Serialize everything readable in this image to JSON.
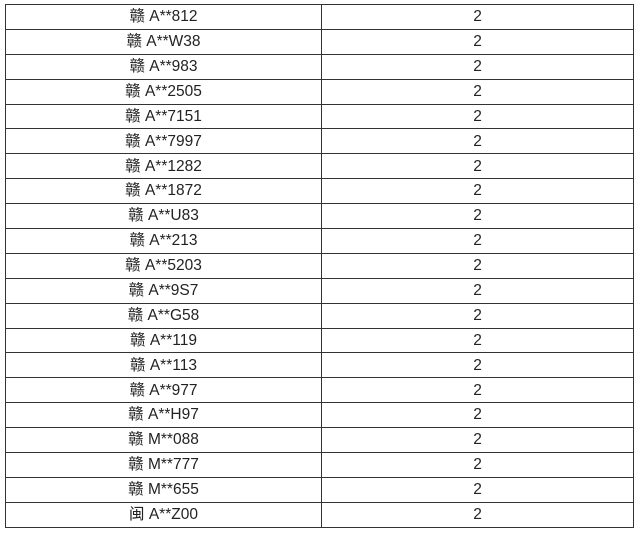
{
  "table": {
    "rows": [
      {
        "plate": "赣 A**812",
        "count": "2"
      },
      {
        "plate": "赣 A**W38",
        "count": "2"
      },
      {
        "plate": "赣 A**983",
        "count": "2"
      },
      {
        "plate": "赣 A**2505",
        "count": "2"
      },
      {
        "plate": "赣 A**7151",
        "count": "2"
      },
      {
        "plate": "赣 A**7997",
        "count": "2"
      },
      {
        "plate": "赣 A**1282",
        "count": "2"
      },
      {
        "plate": "赣 A**1872",
        "count": "2"
      },
      {
        "plate": "赣 A**U83",
        "count": "2"
      },
      {
        "plate": "赣 A**213",
        "count": "2"
      },
      {
        "plate": "赣 A**5203",
        "count": "2"
      },
      {
        "plate": "赣 A**9S7",
        "count": "2"
      },
      {
        "plate": "赣 A**G58",
        "count": "2"
      },
      {
        "plate": "赣 A**119",
        "count": "2"
      },
      {
        "plate": "赣 A**113",
        "count": "2"
      },
      {
        "plate": "赣 A**977",
        "count": "2"
      },
      {
        "plate": "赣 A**H97",
        "count": "2"
      },
      {
        "plate": "赣 M**088",
        "count": "2"
      },
      {
        "plate": "赣 M**777",
        "count": "2"
      },
      {
        "plate": "赣 M**655",
        "count": "2"
      },
      {
        "plate": "闽 A**Z00",
        "count": "2"
      }
    ]
  }
}
